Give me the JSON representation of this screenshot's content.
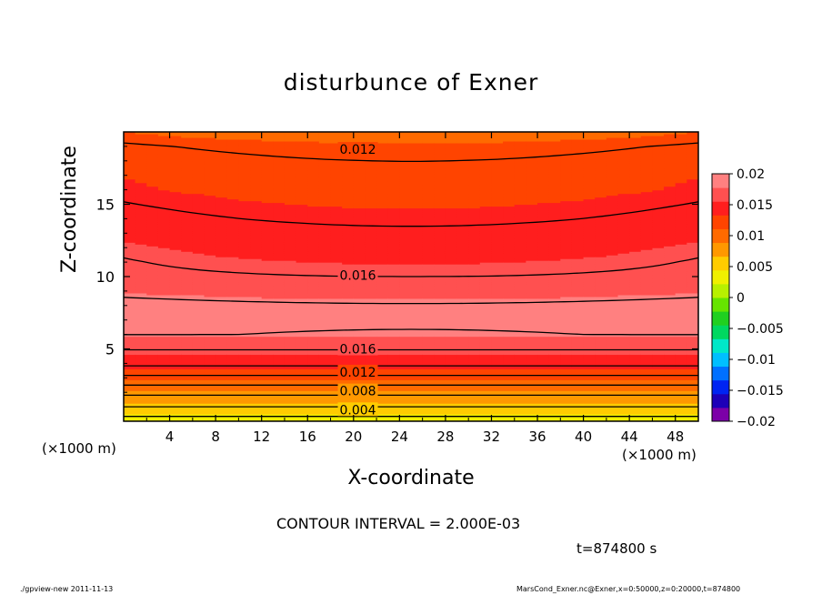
{
  "title": "disturbunce of Exner",
  "x_axis_label": "X-coordinate",
  "y_axis_label": "Z-coordinate",
  "x_unit_left": "(×1000 m)",
  "x_unit_right": "(×1000 m)",
  "contour_interval_text": "CONTOUR INTERVAL = 2.000E-03",
  "time_text": "t=874800 s",
  "footer_left": "./gpview-new   2011-11-13",
  "footer_right": "MarsCond_Exner.nc@Exner,x=0:50000,z=0:20000,t=874800",
  "colors": {
    "bands": [
      "#7c00a8",
      "#1d00b8",
      "#0024f2",
      "#0070ff",
      "#00bfff",
      "#00e8c8",
      "#00d860",
      "#20d020",
      "#66e400",
      "#b8f000",
      "#f0f000",
      "#ffcc00",
      "#ff9800",
      "#ff6a00",
      "#ff4400",
      "#ff1e1e",
      "#ff5050",
      "#ff8080"
    ],
    "contour_line": "#000000"
  },
  "chart_data": {
    "type": "contour",
    "title": "disturbunce of Exner",
    "xlabel": "X-coordinate",
    "ylabel": "Z-coordinate",
    "x_units": "×1000 m",
    "xlim": [
      0,
      50
    ],
    "ylim": [
      0,
      20
    ],
    "x_ticks": [
      4,
      8,
      12,
      16,
      20,
      24,
      28,
      32,
      36,
      40,
      44,
      48
    ],
    "y_ticks": [
      5,
      10,
      15
    ],
    "contour_labels": [
      {
        "text": "0.012",
        "x": 18,
        "z": 18.8
      },
      {
        "text": "0.016",
        "x": 18,
        "z": 10.1
      },
      {
        "text": "0.016",
        "x": 18,
        "z": 5.0
      },
      {
        "text": "0.012",
        "x": 18,
        "z": 3.4
      },
      {
        "text": "0.008",
        "x": 18,
        "z": 2.1
      },
      {
        "text": "0.004",
        "x": 18,
        "z": 0.8
      }
    ],
    "profile_z": [
      0,
      1,
      2,
      3,
      4,
      5,
      6,
      7,
      8,
      9,
      10,
      11,
      12,
      13,
      14,
      15,
      16,
      17,
      18,
      19,
      20
    ],
    "profile_value": [
      0.003,
      0.006,
      0.0085,
      0.0115,
      0.0145,
      0.0161,
      0.018,
      0.0183,
      0.0182,
      0.0175,
      0.0161,
      0.0157,
      0.0152,
      0.0146,
      0.014,
      0.0135,
      0.013,
      0.0127,
      0.0123,
      0.0117,
      0.0105
    ],
    "colorbar": {
      "min": -0.02,
      "max": 0.02,
      "ticks": [
        0.02,
        0.015,
        0.01,
        0.005,
        0,
        -0.005,
        -0.01,
        -0.015,
        -0.02
      ],
      "tick_labels": [
        "0.02",
        "0.015",
        "0.01",
        "0.005",
        "0",
        "−0.005",
        "−0.01",
        "−0.015",
        "−0.02"
      ]
    },
    "contour_interval": 0.002
  }
}
